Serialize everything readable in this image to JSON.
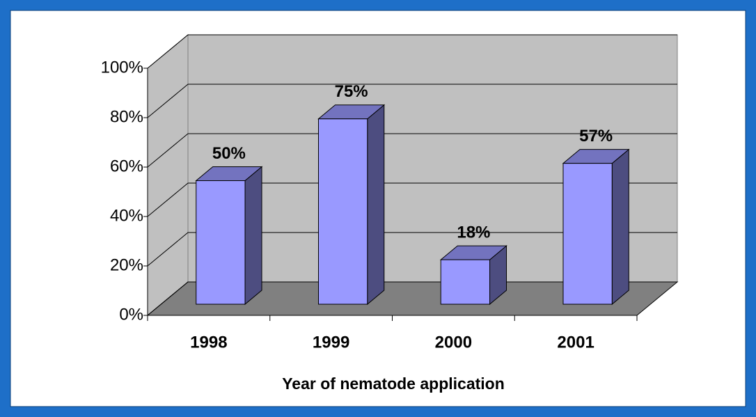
{
  "chart_data": {
    "type": "bar3d",
    "x_label": "Year of nematode application",
    "categories": [
      "1998",
      "1999",
      "2000",
      "2001"
    ],
    "values": [
      50,
      75,
      18,
      57
    ],
    "value_labels": [
      "50%",
      "75%",
      "18%",
      "57%"
    ],
    "color": "#9999ff",
    "ylim": [
      0,
      100
    ],
    "yticks": [
      {
        "value": 0,
        "label": "0%"
      },
      {
        "value": 20,
        "label": "20%"
      },
      {
        "value": 40,
        "label": "40%"
      },
      {
        "value": 60,
        "label": "60%"
      },
      {
        "value": 80,
        "label": "80%"
      },
      {
        "value": 100,
        "label": "100%"
      }
    ],
    "grid": true
  }
}
